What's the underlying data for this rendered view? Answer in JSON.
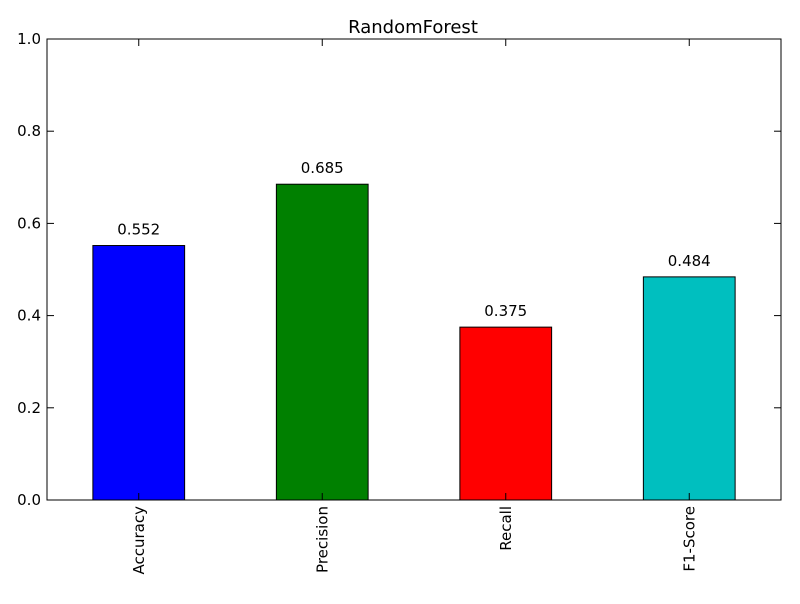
{
  "chart_data": {
    "type": "bar",
    "title": "RandomForest",
    "xlabel": "",
    "ylabel": "",
    "categories": [
      "Accuracy",
      "Precision",
      "Recall",
      "F1-Score"
    ],
    "values": [
      0.552,
      0.685,
      0.375,
      0.484
    ],
    "data_labels": [
      "0.552",
      "0.685",
      "0.375",
      "0.484"
    ],
    "colors": [
      "#0000ff",
      "#008000",
      "#ff0000",
      "#00bfbf"
    ],
    "ylim": [
      0,
      1.0
    ],
    "yticks": [
      0.0,
      0.2,
      0.4,
      0.6,
      0.8,
      1.0
    ],
    "ytick_labels": [
      "0.0",
      "0.2",
      "0.4",
      "0.6",
      "0.8",
      "1.0"
    ],
    "grid": false,
    "legend": "none",
    "x_tick_rotation": "vertical"
  }
}
